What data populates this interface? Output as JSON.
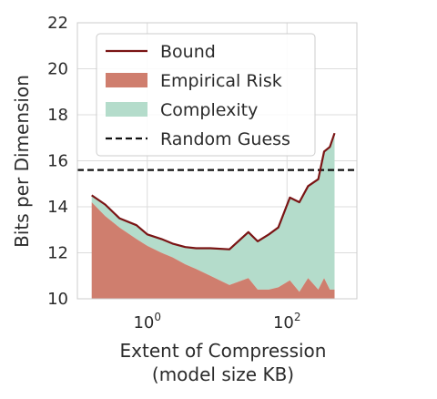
{
  "chart_data": {
    "type": "area",
    "xlabel": [
      "Extent of Compression",
      "(model size KB)"
    ],
    "ylabel": "Bits per Dimension",
    "x_scale": "log",
    "xlim": [
      0.1,
      1000
    ],
    "ylim": [
      10,
      22
    ],
    "yticks": [
      10,
      12,
      14,
      16,
      18,
      20,
      22
    ],
    "xticks": [
      {
        "value": 1,
        "base": "10",
        "exp": "0"
      },
      {
        "value": 100,
        "base": "10",
        "exp": "2"
      }
    ],
    "grid": true,
    "legend_placement": "top-left",
    "series": [
      {
        "name": "Bound",
        "kind": "line",
        "color": "#7a1414",
        "x": [
          0.16,
          0.25,
          0.4,
          0.7,
          1.0,
          1.6,
          2.3,
          3.5,
          5,
          8,
          15,
          28,
          38,
          55,
          75,
          110,
          150,
          200,
          280,
          340,
          410,
          480
        ],
        "y": [
          14.5,
          14.1,
          13.5,
          13.2,
          12.8,
          12.6,
          12.4,
          12.25,
          12.2,
          12.2,
          12.15,
          12.9,
          12.5,
          12.8,
          13.1,
          14.4,
          14.2,
          14.9,
          15.2,
          16.4,
          16.6,
          17.2
        ]
      },
      {
        "name": "Empirical Risk",
        "kind": "area",
        "color": "#cf7e6e",
        "x": [
          0.16,
          0.25,
          0.4,
          0.7,
          1.0,
          1.6,
          2.3,
          3.5,
          5,
          8,
          15,
          28,
          38,
          55,
          75,
          110,
          150,
          200,
          280,
          340,
          410,
          480
        ],
        "y": [
          14.2,
          13.6,
          13.1,
          12.6,
          12.3,
          12.0,
          11.8,
          11.5,
          11.3,
          11.0,
          10.6,
          10.9,
          10.4,
          10.4,
          10.5,
          10.8,
          10.3,
          10.9,
          10.4,
          10.9,
          10.4,
          10.4
        ]
      },
      {
        "name": "Complexity",
        "kind": "area-between",
        "color": "#b4dccb"
      },
      {
        "name": "Random Guess",
        "kind": "hline",
        "color": "#111111",
        "y": 15.6
      }
    ]
  }
}
